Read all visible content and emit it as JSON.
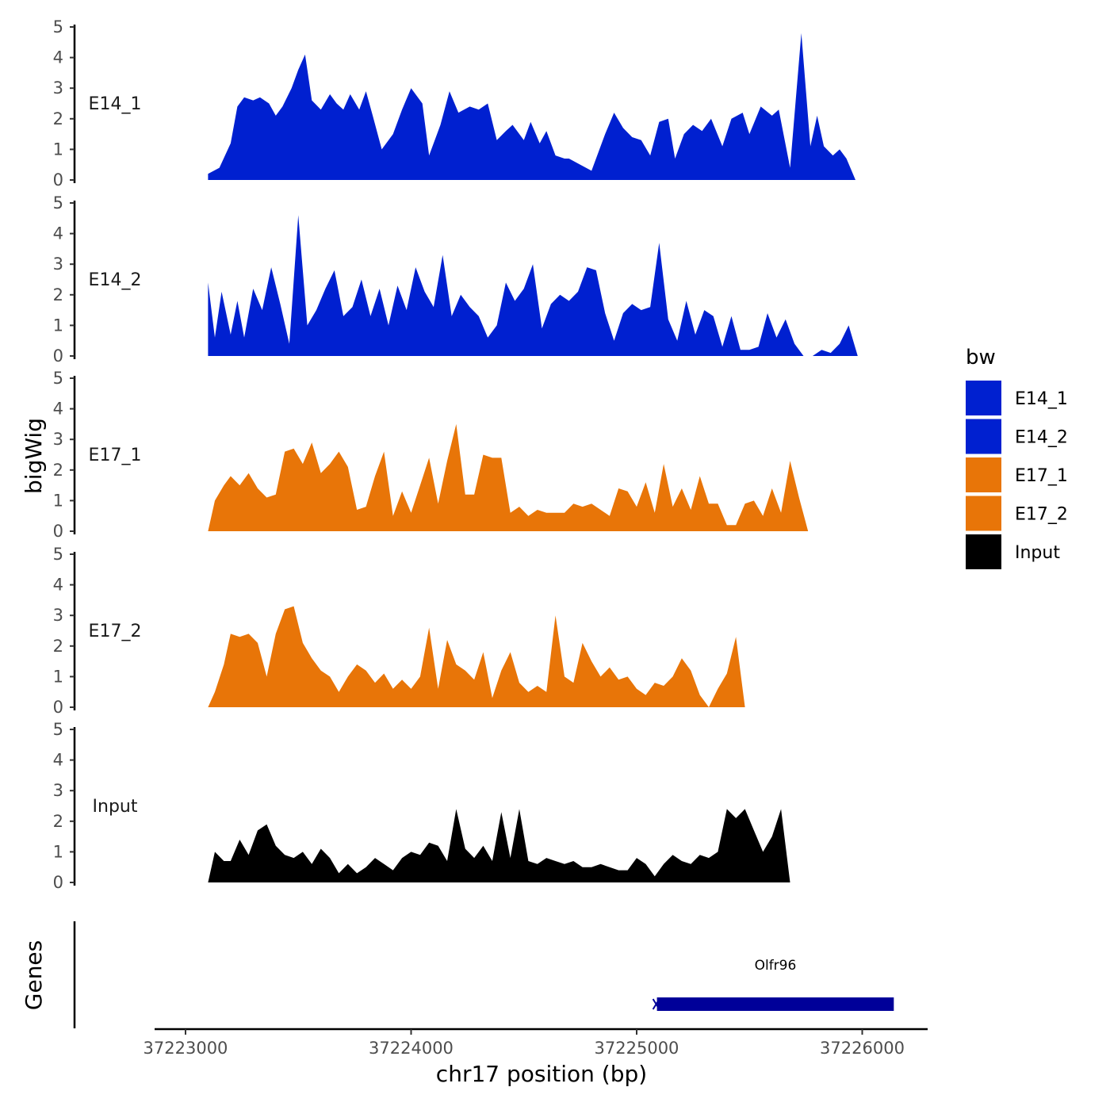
{
  "chart_data": {
    "type": "area",
    "chromosome": "chr17",
    "ylabel": "bigWig",
    "xlabel": "chr17 position (bp)",
    "genes_label": "Genes",
    "ylim": [
      0,
      5
    ],
    "y_ticks": [
      0,
      1,
      2,
      3,
      4,
      5
    ],
    "xlim": [
      37222870,
      37226290
    ],
    "x_ticks": [
      37223000,
      37224000,
      37225000,
      37226000
    ],
    "legend": {
      "title": "bw",
      "entries": [
        {
          "label": "E14_1",
          "color": "#0020D0"
        },
        {
          "label": "E14_2",
          "color": "#0020D0"
        },
        {
          "label": "E17_1",
          "color": "#E87508"
        },
        {
          "label": "E17_2",
          "color": "#E87508"
        },
        {
          "label": "Input",
          "color": "#000000"
        }
      ]
    },
    "tracks": [
      {
        "name": "E14_1",
        "color": "#0020D0",
        "x": [
          37223100,
          37223150,
          37223200,
          37223230,
          37223260,
          37223300,
          37223330,
          37223370,
          37223400,
          37223430,
          37223470,
          37223500,
          37223530,
          37223560,
          37223600,
          37223640,
          37223670,
          37223700,
          37223730,
          37223770,
          37223800,
          37223830,
          37223870,
          37223920,
          37223960,
          37224000,
          37224050,
          37224080,
          37224130,
          37224170,
          37224210,
          37224260,
          37224300,
          37224340,
          37224380,
          37224420,
          37224450,
          37224500,
          37224530,
          37224570,
          37224600,
          37224640,
          37224680,
          37224700,
          37224750,
          37224800,
          37224860,
          37224900,
          37224940,
          37224980,
          37225020,
          37225060,
          37225100,
          37225140,
          37225170,
          37225210,
          37225250,
          37225290,
          37225330,
          37225380,
          37225420,
          37225470,
          37225500,
          37225550,
          37225600,
          37225630,
          37225680,
          37225730,
          37225770,
          37225800,
          37225830,
          37225870,
          37225900,
          37225930,
          37225970,
          37226000,
          37226040,
          37226070,
          37226100,
          37226130
        ],
        "values": [
          0.2,
          0.4,
          1.2,
          2.4,
          2.7,
          2.6,
          2.7,
          2.5,
          2.1,
          2.4,
          3.0,
          3.6,
          4.1,
          2.6,
          2.3,
          2.8,
          2.5,
          2.3,
          2.8,
          2.3,
          2.9,
          2.1,
          1.0,
          1.5,
          2.3,
          3.0,
          2.5,
          0.8,
          1.8,
          2.9,
          2.2,
          2.4,
          2.3,
          2.5,
          1.3,
          1.6,
          1.8,
          1.3,
          1.9,
          1.2,
          1.6,
          0.8,
          0.7,
          0.7,
          0.5,
          0.3,
          1.5,
          2.2,
          1.7,
          1.4,
          1.3,
          0.8,
          1.9,
          2.0,
          0.7,
          1.5,
          1.8,
          1.6,
          2.0,
          1.1,
          2.0,
          2.2,
          1.5,
          2.4,
          2.1,
          2.3,
          0.4,
          4.8,
          1.1,
          2.1,
          1.1,
          0.8,
          1.0,
          0.7,
          0.0,
          0.0,
          0.0,
          0.0,
          0.0,
          0.0
        ]
      },
      {
        "name": "E14_2",
        "color": "#0020D0",
        "x": [
          37223100,
          37223130,
          37223160,
          37223200,
          37223230,
          37223260,
          37223300,
          37223340,
          37223380,
          37223420,
          37223460,
          37223500,
          37223540,
          37223580,
          37223620,
          37223660,
          37223700,
          37223740,
          37223780,
          37223820,
          37223860,
          37223900,
          37223940,
          37223980,
          37224020,
          37224060,
          37224100,
          37224140,
          37224180,
          37224220,
          37224260,
          37224300,
          37224340,
          37224380,
          37224420,
          37224460,
          37224500,
          37224540,
          37224580,
          37224620,
          37224660,
          37224700,
          37224740,
          37224780,
          37224820,
          37224860,
          37224900,
          37224940,
          37224980,
          37225020,
          37225060,
          37225100,
          37225140,
          37225180,
          37225220,
          37225260,
          37225300,
          37225340,
          37225380,
          37225420,
          37225460,
          37225500,
          37225540,
          37225580,
          37225620,
          37225660,
          37225700,
          37225740,
          37225780,
          37225820,
          37225860,
          37225900,
          37225940,
          37225980,
          37226020,
          37226060,
          37226100,
          37226130
        ],
        "values": [
          2.4,
          0.6,
          2.1,
          0.7,
          1.8,
          0.6,
          2.2,
          1.5,
          2.9,
          1.7,
          0.4,
          4.6,
          1.0,
          1.5,
          2.2,
          2.8,
          1.3,
          1.6,
          2.5,
          1.3,
          2.2,
          1.0,
          2.3,
          1.5,
          2.9,
          2.1,
          1.6,
          3.3,
          1.3,
          2.0,
          1.6,
          1.3,
          0.6,
          1.0,
          2.4,
          1.8,
          2.2,
          3.0,
          0.9,
          1.7,
          2.0,
          1.8,
          2.1,
          2.9,
          2.8,
          1.4,
          0.5,
          1.4,
          1.7,
          1.5,
          1.6,
          3.7,
          1.2,
          0.5,
          1.8,
          0.7,
          1.5,
          1.3,
          0.3,
          1.3,
          0.2,
          0.2,
          0.3,
          1.4,
          0.6,
          1.2,
          0.4,
          0.0,
          0.0,
          0.2,
          0.1,
          0.4,
          1.0,
          0.0,
          0.0,
          0.0,
          0.0,
          0.0
        ]
      },
      {
        "name": "E17_1",
        "color": "#E87508",
        "x": [
          37223100,
          37223130,
          37223170,
          37223200,
          37223240,
          37223280,
          37223320,
          37223360,
          37223400,
          37223440,
          37223480,
          37223520,
          37223560,
          37223600,
          37223640,
          37223680,
          37223720,
          37223760,
          37223800,
          37223840,
          37223880,
          37223920,
          37223960,
          37224000,
          37224040,
          37224080,
          37224120,
          37224160,
          37224200,
          37224240,
          37224280,
          37224320,
          37224360,
          37224400,
          37224440,
          37224480,
          37224520,
          37224560,
          37224600,
          37224640,
          37224680,
          37224720,
          37224760,
          37224800,
          37224840,
          37224880,
          37224920,
          37224960,
          37225000,
          37225040,
          37225080,
          37225120,
          37225160,
          37225200,
          37225240,
          37225280,
          37225320,
          37225360,
          37225400,
          37225440,
          37225480,
          37225520,
          37225560,
          37225600,
          37225640,
          37225680,
          37225720,
          37225760,
          37225800,
          37225840,
          37225880,
          37225920,
          37225960,
          37226000,
          37226040,
          37226080,
          37226130
        ],
        "values": [
          0.0,
          1.0,
          1.5,
          1.8,
          1.5,
          1.9,
          1.4,
          1.1,
          1.2,
          2.6,
          2.7,
          2.2,
          2.9,
          1.9,
          2.2,
          2.6,
          2.1,
          0.7,
          0.8,
          1.8,
          2.6,
          0.5,
          1.3,
          0.6,
          1.5,
          2.4,
          0.9,
          2.3,
          3.5,
          1.2,
          1.2,
          2.5,
          2.4,
          2.4,
          0.6,
          0.8,
          0.5,
          0.7,
          0.6,
          0.6,
          0.6,
          0.9,
          0.8,
          0.9,
          0.7,
          0.5,
          1.4,
          1.3,
          0.8,
          1.6,
          0.6,
          2.2,
          0.8,
          1.4,
          0.7,
          1.8,
          0.9,
          0.9,
          0.2,
          0.2,
          0.9,
          1.0,
          0.5,
          1.4,
          0.6,
          2.3,
          1.1,
          0.0,
          0.0,
          0.0,
          0.0,
          0.0,
          0.0,
          0.0,
          0.0,
          0.0,
          0.0
        ]
      },
      {
        "name": "E17_2",
        "color": "#E87508",
        "x": [
          37223100,
          37223130,
          37223170,
          37223200,
          37223240,
          37223280,
          37223320,
          37223360,
          37223400,
          37223440,
          37223480,
          37223520,
          37223560,
          37223600,
          37223640,
          37223680,
          37223720,
          37223760,
          37223800,
          37223840,
          37223880,
          37223920,
          37223960,
          37224000,
          37224040,
          37224080,
          37224120,
          37224160,
          37224200,
          37224240,
          37224280,
          37224320,
          37224360,
          37224400,
          37224440,
          37224480,
          37224520,
          37224560,
          37224600,
          37224640,
          37224680,
          37224720,
          37224760,
          37224800,
          37224840,
          37224880,
          37224920,
          37224960,
          37225000,
          37225040,
          37225080,
          37225120,
          37225160,
          37225200,
          37225240,
          37225280,
          37225320,
          37225360,
          37225400,
          37225440,
          37225480,
          37225520,
          37225560,
          37225600,
          37225640,
          37225680,
          37225720,
          37225760,
          37225800,
          37225840,
          37225880,
          37225920,
          37225960,
          37226000,
          37226040,
          37226080,
          37226130
        ],
        "values": [
          0.0,
          0.5,
          1.4,
          2.4,
          2.3,
          2.4,
          2.1,
          1.0,
          2.4,
          3.2,
          3.3,
          2.1,
          1.6,
          1.2,
          1.0,
          0.5,
          1.0,
          1.4,
          1.2,
          0.8,
          1.1,
          0.6,
          0.9,
          0.6,
          1.0,
          2.6,
          0.6,
          2.2,
          1.4,
          1.2,
          0.9,
          1.8,
          0.3,
          1.2,
          1.8,
          0.8,
          0.5,
          0.7,
          0.5,
          3.0,
          1.0,
          0.8,
          2.1,
          1.5,
          1.0,
          1.3,
          0.9,
          1.0,
          0.6,
          0.4,
          0.8,
          0.7,
          1.0,
          1.6,
          1.2,
          0.4,
          0.0,
          0.6,
          1.1,
          2.3,
          0.0,
          0.0,
          0.0,
          0.0,
          0.0,
          0.0,
          0.0,
          0.0,
          0.0,
          0.0,
          0.0,
          0.0,
          0.0,
          0.0,
          0.0,
          0.0,
          0.0
        ]
      },
      {
        "name": "Input",
        "color": "#000000",
        "x": [
          37223100,
          37223130,
          37223170,
          37223200,
          37223240,
          37223280,
          37223320,
          37223360,
          37223400,
          37223440,
          37223480,
          37223520,
          37223560,
          37223600,
          37223640,
          37223680,
          37223720,
          37223760,
          37223800,
          37223840,
          37223880,
          37223920,
          37223960,
          37224000,
          37224040,
          37224080,
          37224120,
          37224160,
          37224200,
          37224240,
          37224280,
          37224320,
          37224360,
          37224400,
          37224440,
          37224480,
          37224520,
          37224560,
          37224600,
          37224640,
          37224680,
          37224720,
          37224760,
          37224800,
          37224840,
          37224880,
          37224920,
          37224960,
          37225000,
          37225040,
          37225080,
          37225120,
          37225160,
          37225200,
          37225240,
          37225280,
          37225320,
          37225360,
          37225400,
          37225440,
          37225480,
          37225520,
          37225560,
          37225600,
          37225640,
          37225680,
          37225720,
          37225760,
          37225800,
          37225840,
          37225880,
          37225920,
          37225960,
          37226000,
          37226040,
          37226080,
          37226130
        ],
        "values": [
          0.0,
          1.0,
          0.7,
          0.7,
          1.4,
          0.9,
          1.7,
          1.9,
          1.2,
          0.9,
          0.8,
          1.0,
          0.6,
          1.1,
          0.8,
          0.3,
          0.6,
          0.3,
          0.5,
          0.8,
          0.6,
          0.4,
          0.8,
          1.0,
          0.9,
          1.3,
          1.2,
          0.7,
          2.4,
          1.1,
          0.8,
          1.2,
          0.7,
          2.3,
          0.8,
          2.4,
          0.7,
          0.6,
          0.8,
          0.7,
          0.6,
          0.7,
          0.5,
          0.5,
          0.6,
          0.5,
          0.4,
          0.4,
          0.8,
          0.6,
          0.2,
          0.6,
          0.9,
          0.7,
          0.6,
          0.9,
          0.8,
          1.0,
          2.4,
          2.1,
          2.4,
          1.7,
          1.0,
          1.5,
          2.4,
          0.0,
          0.0,
          0.0,
          0.0,
          0.0,
          0.0,
          0.0,
          0.0,
          0.0,
          0.0,
          0.0,
          0.0
        ]
      }
    ],
    "genes": [
      {
        "name": "Olfr96",
        "start": 37225090,
        "end": 37226140,
        "strand": "-",
        "color": "#000099"
      }
    ]
  }
}
